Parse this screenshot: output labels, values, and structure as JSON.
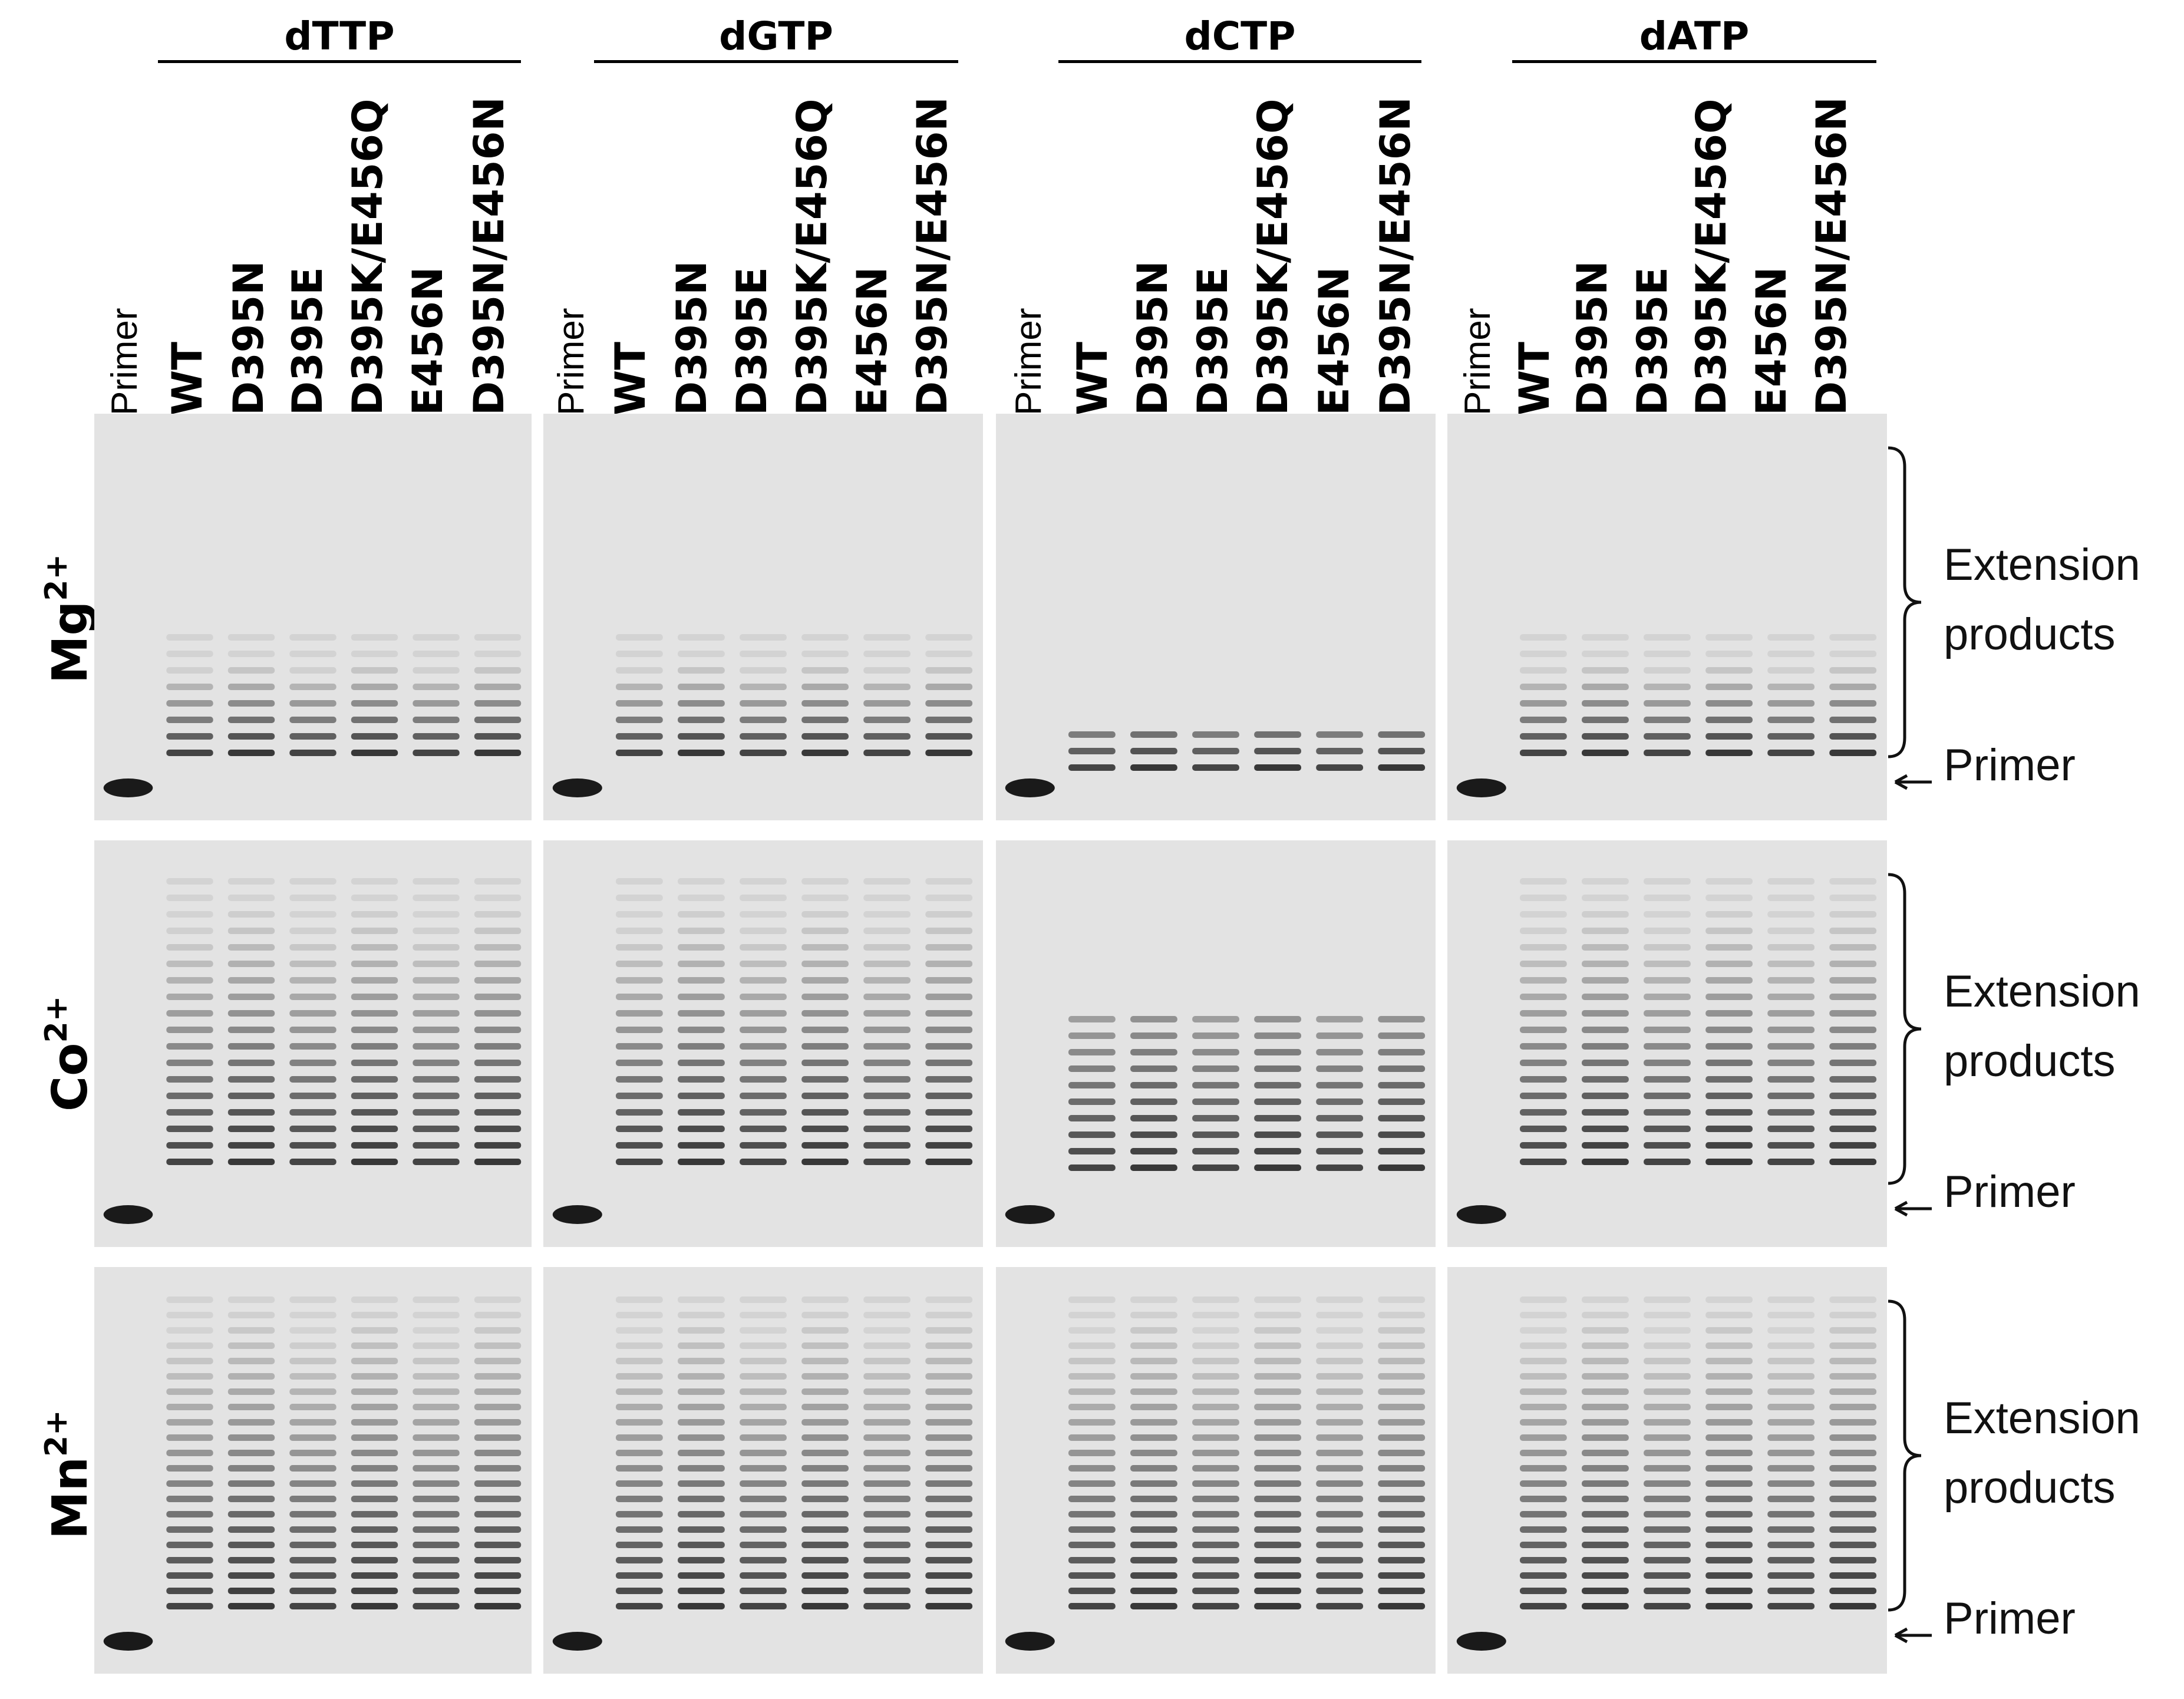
{
  "nucleotides": [
    "dTTP",
    "dGTP",
    "dCTP",
    "dATP"
  ],
  "lanes": [
    "Primer",
    "WT",
    "D395N",
    "D395E",
    "D395K/E456Q",
    "E456N",
    "D395N/E456N"
  ],
  "ions": [
    {
      "base": "Mg",
      "charge": "2+"
    },
    {
      "base": "Co",
      "charge": "2+"
    },
    {
      "base": "Mn",
      "charge": "2+"
    }
  ],
  "side_labels": {
    "extension_line1": "Extension",
    "extension_line2": "products",
    "primer": "Primer"
  },
  "colors": {
    "gel_background": "#e3e3e3",
    "band": "#1a1a1a",
    "text": "#000000"
  }
}
